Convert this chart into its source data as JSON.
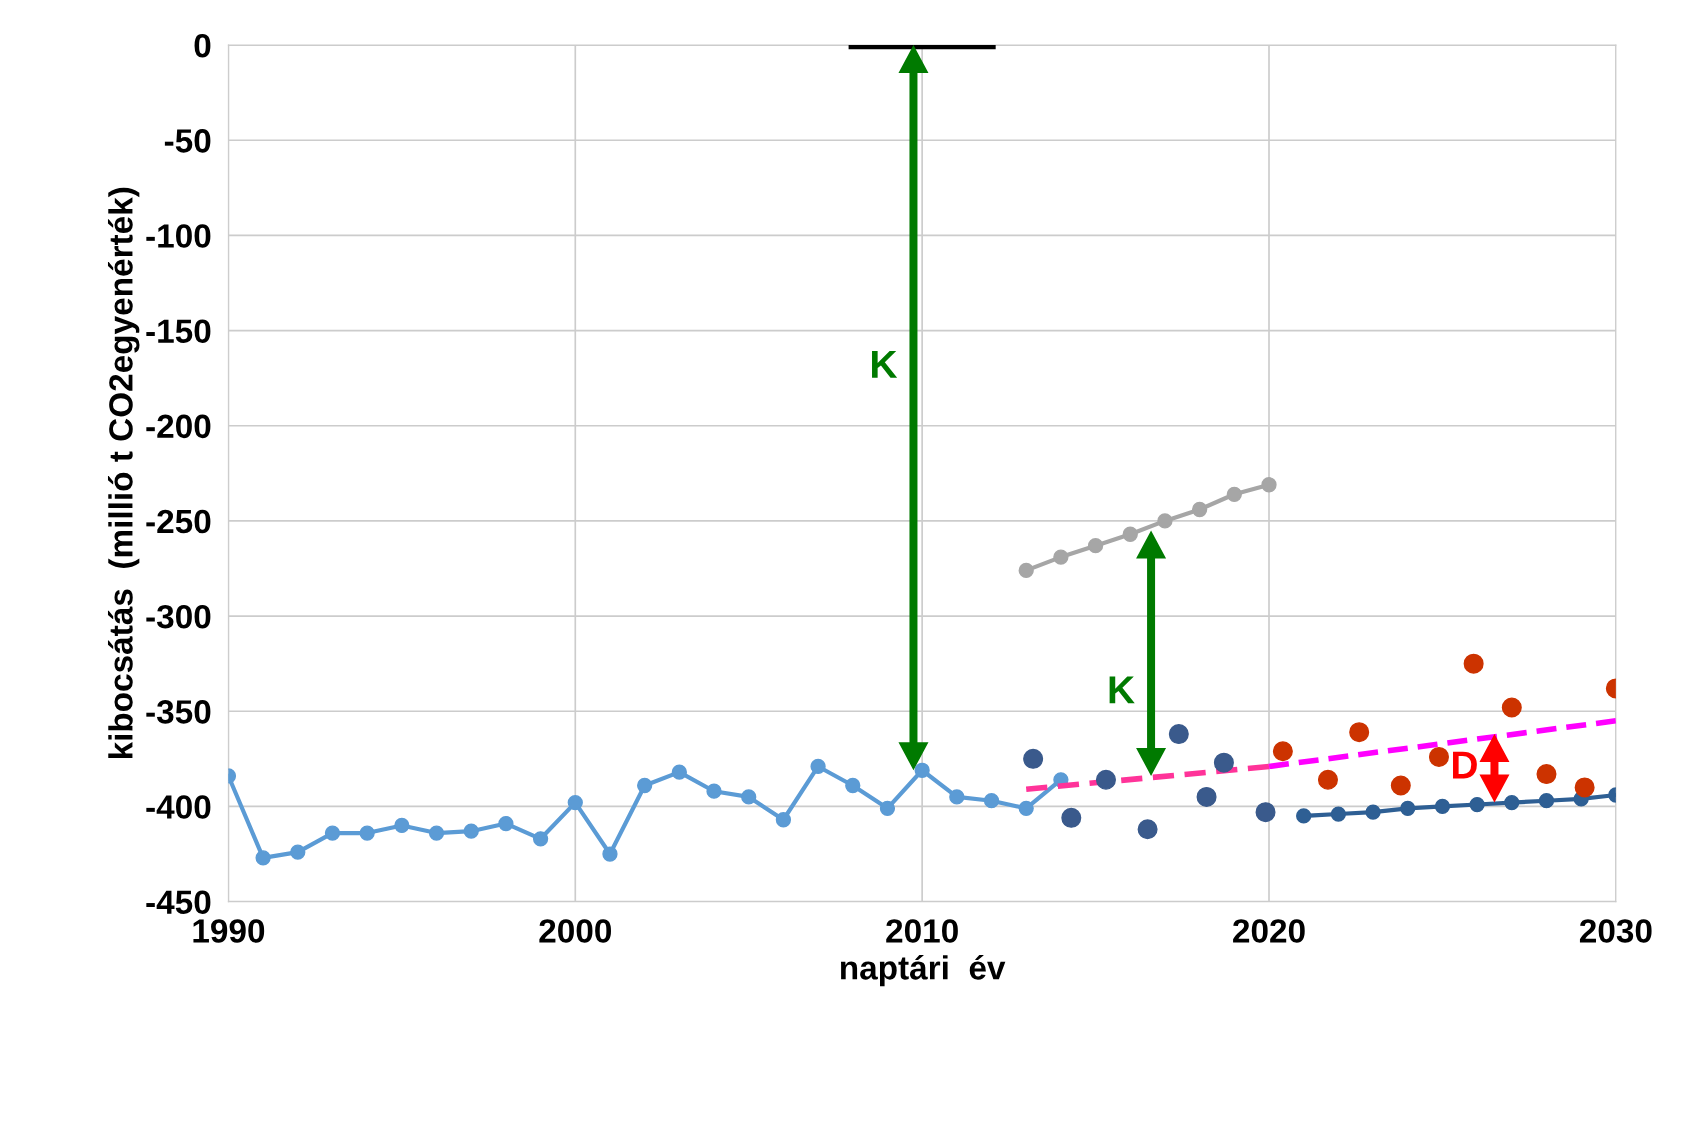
{
  "chart_data": {
    "type": "line",
    "xlabel": "naptári  év",
    "ylabel": "kibocsátás  (millió t CO2egyenérték)",
    "xlim": [
      1990,
      2030
    ],
    "xticks": [
      1990,
      2000,
      2010,
      2020,
      2030
    ],
    "ylim": [
      -450,
      0
    ],
    "yticks": [
      -450,
      -400,
      -350,
      -300,
      -250,
      -200,
      -150,
      -100,
      -50,
      0
    ],
    "grid": true,
    "legend": false,
    "series": [
      {
        "color": "#5b9bd5",
        "marker": "circle",
        "x": [
          1990,
          1991,
          1992,
          1993,
          1994,
          1995,
          1996,
          1997,
          1998,
          1999,
          2000,
          2001,
          2002,
          2003,
          2004,
          2005,
          2006,
          2007,
          2008,
          2009,
          2010,
          2011,
          2012,
          2013,
          2014
        ],
        "values": [
          -384,
          -427,
          -424,
          -414,
          -414,
          -410,
          -414,
          -413,
          -409,
          -417,
          -398,
          -425,
          -389,
          -382,
          -392,
          -395,
          -407,
          -379,
          -389,
          -401,
          -381,
          -395,
          -397,
          -401,
          -386
        ]
      },
      {
        "color": "#a6a6a6",
        "marker": "circle",
        "x": [
          2013,
          2014,
          2015,
          2016,
          2017,
          2018,
          2019,
          2020
        ],
        "values": [
          -276,
          -269,
          -263,
          -257,
          -250,
          -244,
          -236,
          -231
        ]
      },
      {
        "color": "#000000",
        "marker": "none",
        "x": [
          2008,
          2012
        ],
        "values": [
          0,
          0
        ]
      },
      {
        "color": "#2e5f94",
        "marker": "circle",
        "x": [
          2021,
          2022,
          2023,
          2024,
          2025,
          2026,
          2027,
          2028,
          2029,
          2030
        ],
        "values": [
          -405,
          -404,
          -403,
          -401,
          -400,
          -399,
          -398,
          -397,
          -396,
          -394
        ]
      },
      {
        "color": "#ff3399",
        "marker": "none",
        "line_style": "dashed",
        "x": [
          2013,
          2020
        ],
        "values": [
          -391,
          -379
        ]
      },
      {
        "color": "#ff00ff",
        "marker": "none",
        "line_style": "dashed",
        "x": [
          2020,
          2030
        ],
        "values": [
          -379,
          -355
        ]
      },
      {
        "type": "scatter",
        "color": "#3a5a8c",
        "marker": "circle",
        "x": [
          2013.2,
          2014.3,
          2015.3,
          2016.5,
          2017.4,
          2018.2,
          2018.7,
          2019.9
        ],
        "values": [
          -375,
          -406,
          -386,
          -412,
          -362,
          -395,
          -377,
          -403
        ]
      },
      {
        "type": "scatter",
        "color": "#cc3300",
        "marker": "circle",
        "x": [
          2020.4,
          2021.7,
          2022.6,
          2023.8,
          2024.9,
          2025.9,
          2027.0,
          2028.0,
          2029.1,
          2030.0
        ],
        "values": [
          -371,
          -386,
          -361,
          -389,
          -374,
          -325,
          -348,
          -383,
          -390,
          -338
        ]
      }
    ],
    "annotations": [
      "K",
      "K",
      "D"
    ]
  }
}
